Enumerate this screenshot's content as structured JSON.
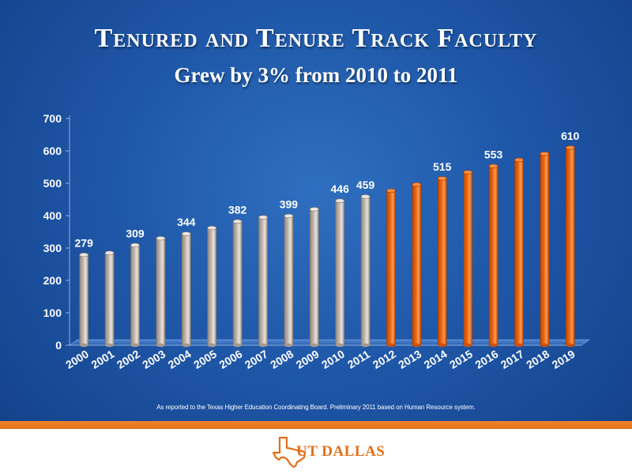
{
  "title": "Tenured and Tenure Track Faculty",
  "subtitle": "Grew by 3% from 2010 to 2011",
  "footnote": "As reported to the Texas Higher Education Coordinating Board. Preliminary 2011 based on Human Resource system.",
  "logo": {
    "text": "UT DALLAS",
    "icon": "texas-state-icon"
  },
  "colors": {
    "actual": "#c7bdb3",
    "projected": "#f06a12",
    "background": "#1f57a8",
    "footer_band": "#e8761f"
  },
  "chart_data": {
    "type": "bar",
    "title": "",
    "xlabel": "",
    "ylabel": "",
    "ylim": [
      0,
      700
    ],
    "yticks": [
      0,
      100,
      200,
      300,
      400,
      500,
      600,
      700
    ],
    "grid": false,
    "legend": "none",
    "categories": [
      "2000",
      "2001",
      "2002",
      "2003",
      "2004",
      "2005",
      "2006",
      "2007",
      "2008",
      "2009",
      "2010",
      "2011",
      "2012",
      "2013",
      "2014",
      "2015",
      "2016",
      "2017",
      "2018",
      "2019"
    ],
    "values": [
      279,
      285,
      309,
      330,
      344,
      362,
      382,
      395,
      399,
      420,
      446,
      459,
      477,
      496,
      515,
      534,
      553,
      572,
      591,
      610
    ],
    "projected_from": "2012",
    "data_labels": {
      "2000": "279",
      "2002": "309",
      "2004": "344",
      "2006": "382",
      "2008": "399",
      "2010": "446",
      "2011": "459",
      "2014": "515",
      "2016": "553",
      "2019": "610"
    }
  }
}
